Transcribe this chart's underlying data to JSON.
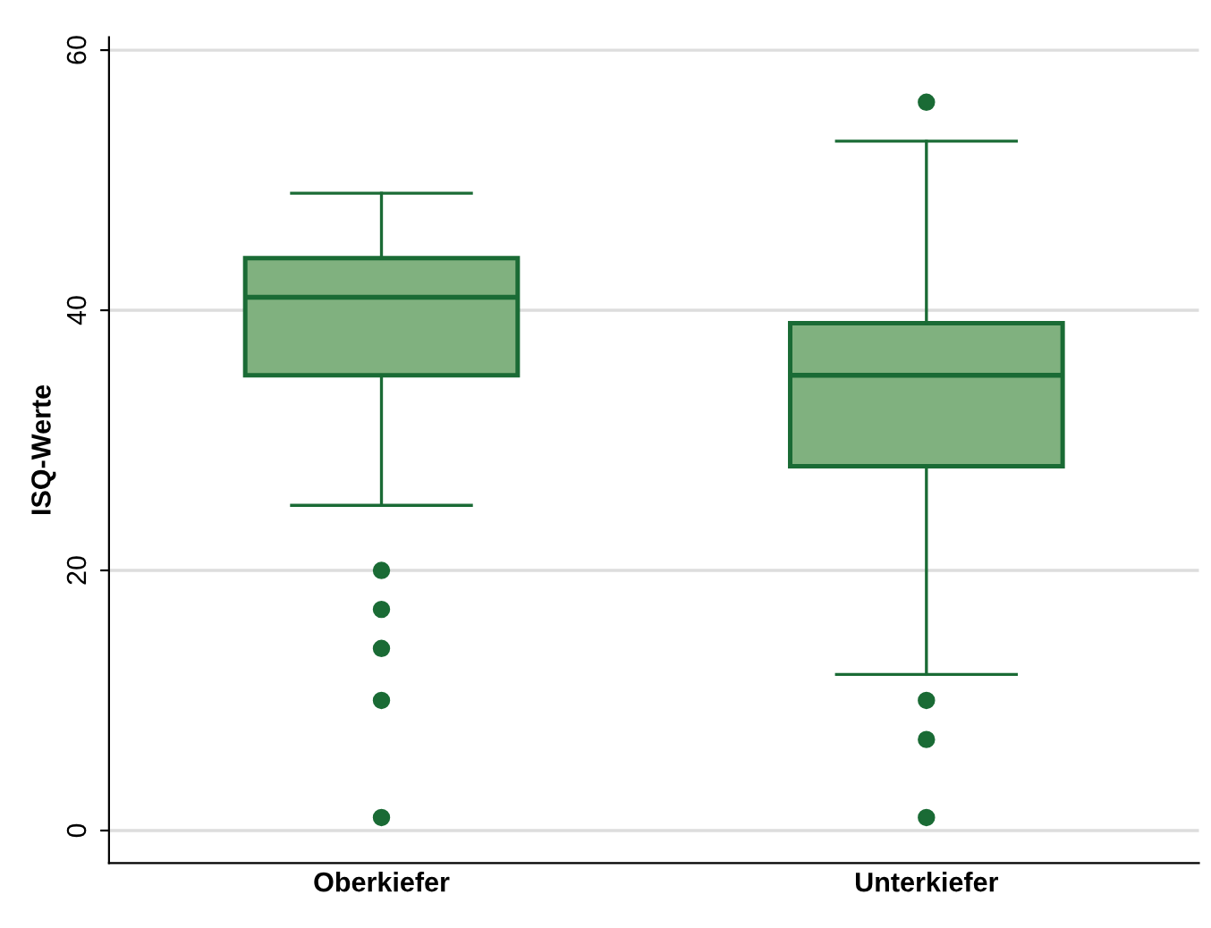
{
  "chart_data": {
    "type": "box",
    "ylabel": "ISQ-Werte",
    "categories": [
      "Oberkiefer",
      "Unterkiefer"
    ],
    "series": [
      {
        "color": "#80b17f",
        "boxes": [
          {
            "low": 25,
            "q1": 35,
            "median": 41,
            "q3": 44,
            "high": 49,
            "outliers": [
              20,
              17,
              14,
              10,
              1
            ]
          },
          {
            "low": 12,
            "q1": 28,
            "median": 35,
            "q3": 39,
            "high": 53,
            "outliers": [
              56,
              10,
              7,
              1
            ]
          }
        ]
      }
    ],
    "ylim": [
      -2.5,
      61
    ],
    "yticks": [
      0,
      20,
      40,
      60
    ],
    "grid": "y"
  }
}
